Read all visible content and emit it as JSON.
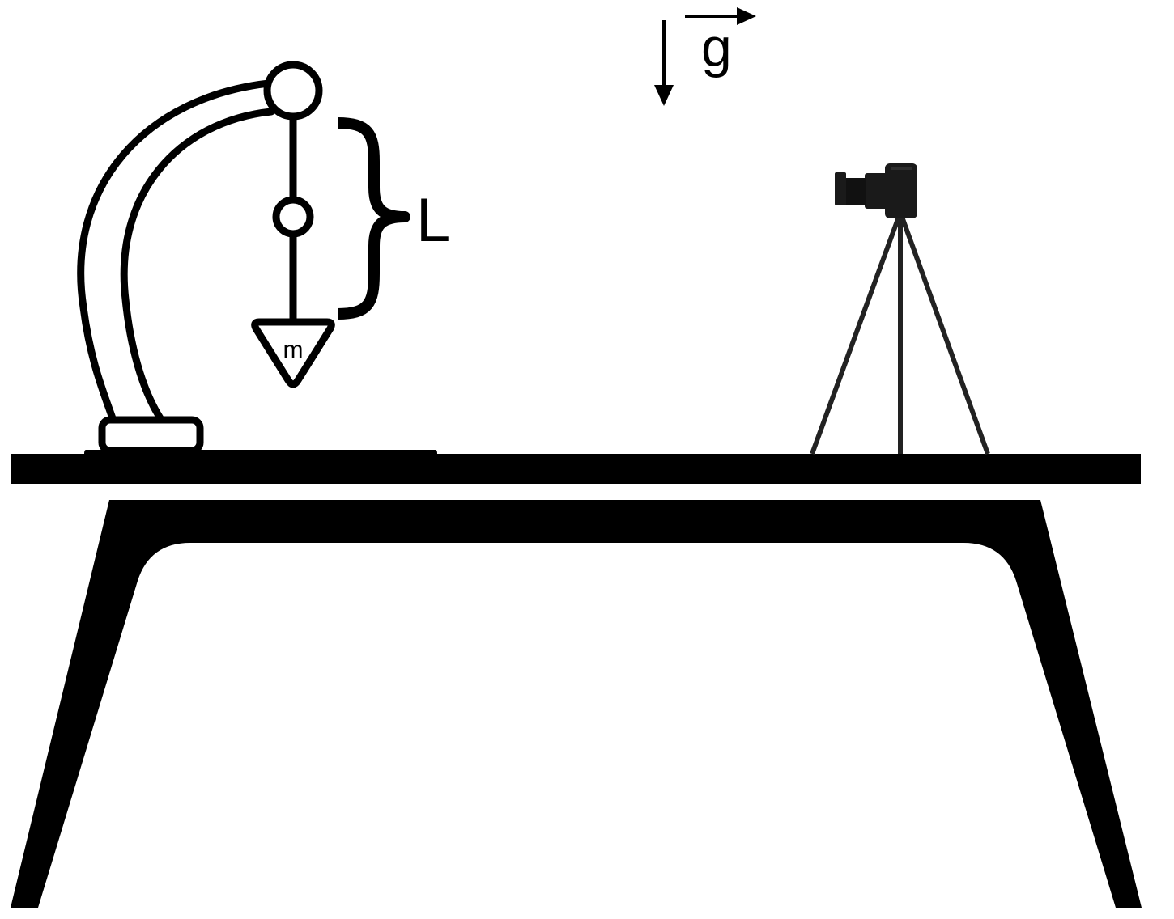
{
  "labels": {
    "gravity": "g",
    "length": "L",
    "mass": "m"
  },
  "colors": {
    "ink": "#000000",
    "paper": "#ffffff",
    "camera_body": "#1a1a1a",
    "tripod": "#222222"
  },
  "icons": {
    "pendulum_stand": "pendulum-stand-icon",
    "camera": "camera-icon",
    "tripod": "tripod-icon",
    "table": "table-icon",
    "gravity_arrow": "down-arrow-icon",
    "vector_arrow": "right-arrow-icon",
    "length_brace": "curly-brace-icon"
  }
}
